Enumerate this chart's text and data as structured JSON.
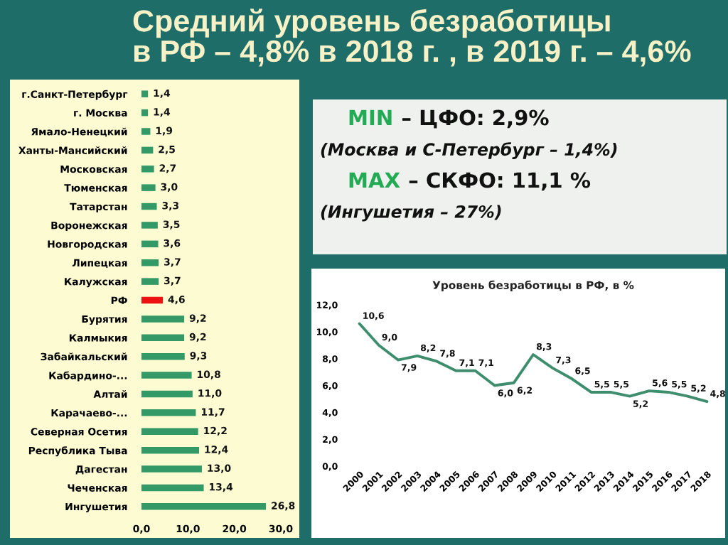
{
  "chart_data": [
    {
      "type": "bar",
      "orientation": "horizontal",
      "title": "Средний уровень безработицы\nв РФ – 4,8% в 2018 г. , в 2019 г. – 4,6%",
      "categories": [
        "г.Санкт-Петербург",
        "г. Москва",
        "Ямало-Ненецкий",
        "Ханты-Мансийский",
        "Московская",
        "Тюменская",
        "Татарстан",
        "Воронежская",
        "Новгородская",
        "Липецкая",
        "Калужская",
        "РФ",
        "Бурятия",
        "Калмыкия",
        "Забайкальский",
        "Кабардино-...",
        "Алтай",
        "Карачаево-...",
        "Северная Осетия",
        "Республика Тыва",
        "Дагестан",
        "Чеченская",
        "Ингушетия"
      ],
      "values": [
        1.4,
        1.4,
        1.9,
        2.5,
        2.7,
        3.0,
        3.3,
        3.5,
        3.6,
        3.7,
        3.7,
        4.6,
        9.2,
        9.2,
        9.3,
        10.8,
        11.0,
        11.7,
        12.2,
        12.4,
        13.0,
        13.4,
        26.8
      ],
      "value_labels": [
        "1,4",
        "1,4",
        "1,9",
        "2,5",
        "2,7",
        "3,0",
        "3,3",
        "3,5",
        "3,6",
        "3,7",
        "3,7",
        "4,6",
        "9,2",
        "9,2",
        "9,3",
        "10,8",
        "11,0",
        "11,7",
        "12,2",
        "12,4",
        "13,0",
        "13,4",
        "26,8"
      ],
      "colors": [
        "#339966",
        "#339966",
        "#339966",
        "#339966",
        "#339966",
        "#339966",
        "#339966",
        "#339966",
        "#339966",
        "#339966",
        "#339966",
        "#ee1111",
        "#339966",
        "#339966",
        "#339966",
        "#339966",
        "#339966",
        "#339966",
        "#339966",
        "#339966",
        "#339966",
        "#339966",
        "#339966"
      ],
      "xlim": [
        0,
        30
      ],
      "xticks": [
        {
          "value": 0,
          "label": "0,0"
        },
        {
          "value": 10,
          "label": "10,0"
        },
        {
          "value": 20,
          "label": "20,0"
        },
        {
          "value": 30,
          "label": "30,0"
        }
      ]
    },
    {
      "type": "other",
      "color": "#22aa55",
      "annotations": [
        "MIN – ЦФО: 2,9%",
        "(Москва и С-Петербург – 1,4%)",
        "MAX – СКФО: 11,1 %",
        "(Ингушетия – 27%)"
      ]
    },
    {
      "type": "line",
      "title": "Уровень безработицы в РФ, в %",
      "categories": [
        "2000",
        "2001",
        "2002",
        "2003",
        "2004",
        "2005",
        "2006",
        "2007",
        "2008",
        "2009",
        "2010",
        "2011",
        "2012",
        "2013",
        "2014",
        "2015",
        "2016",
        "2017",
        "2018"
      ],
      "values": [
        10.6,
        9.0,
        7.9,
        8.2,
        7.8,
        7.1,
        7.1,
        6.0,
        6.2,
        8.3,
        7.3,
        6.5,
        5.5,
        5.5,
        5.2,
        5.6,
        5.5,
        5.2,
        4.8
      ],
      "value_labels": [
        "10,6",
        "9,0",
        "7,9",
        "8,2",
        "7,8",
        "7,1",
        "7,1",
        "6,0",
        "6,2",
        "8,3",
        "7,3",
        "6,5",
        "5,5",
        "5,5",
        "5,2",
        "5,6",
        "5,5",
        "5,2",
        "4,8"
      ],
      "color": "#3e8e6e",
      "ylim": [
        0,
        12
      ],
      "yticks": [
        {
          "value": 0,
          "label": "0,0"
        },
        {
          "value": 2,
          "label": "2,0"
        },
        {
          "value": 4,
          "label": "4,0"
        },
        {
          "value": 6,
          "label": "6,0"
        },
        {
          "value": 8,
          "label": "8,0"
        },
        {
          "value": 10,
          "label": "10,0"
        },
        {
          "value": 12,
          "label": "12,0"
        }
      ]
    }
  ]
}
